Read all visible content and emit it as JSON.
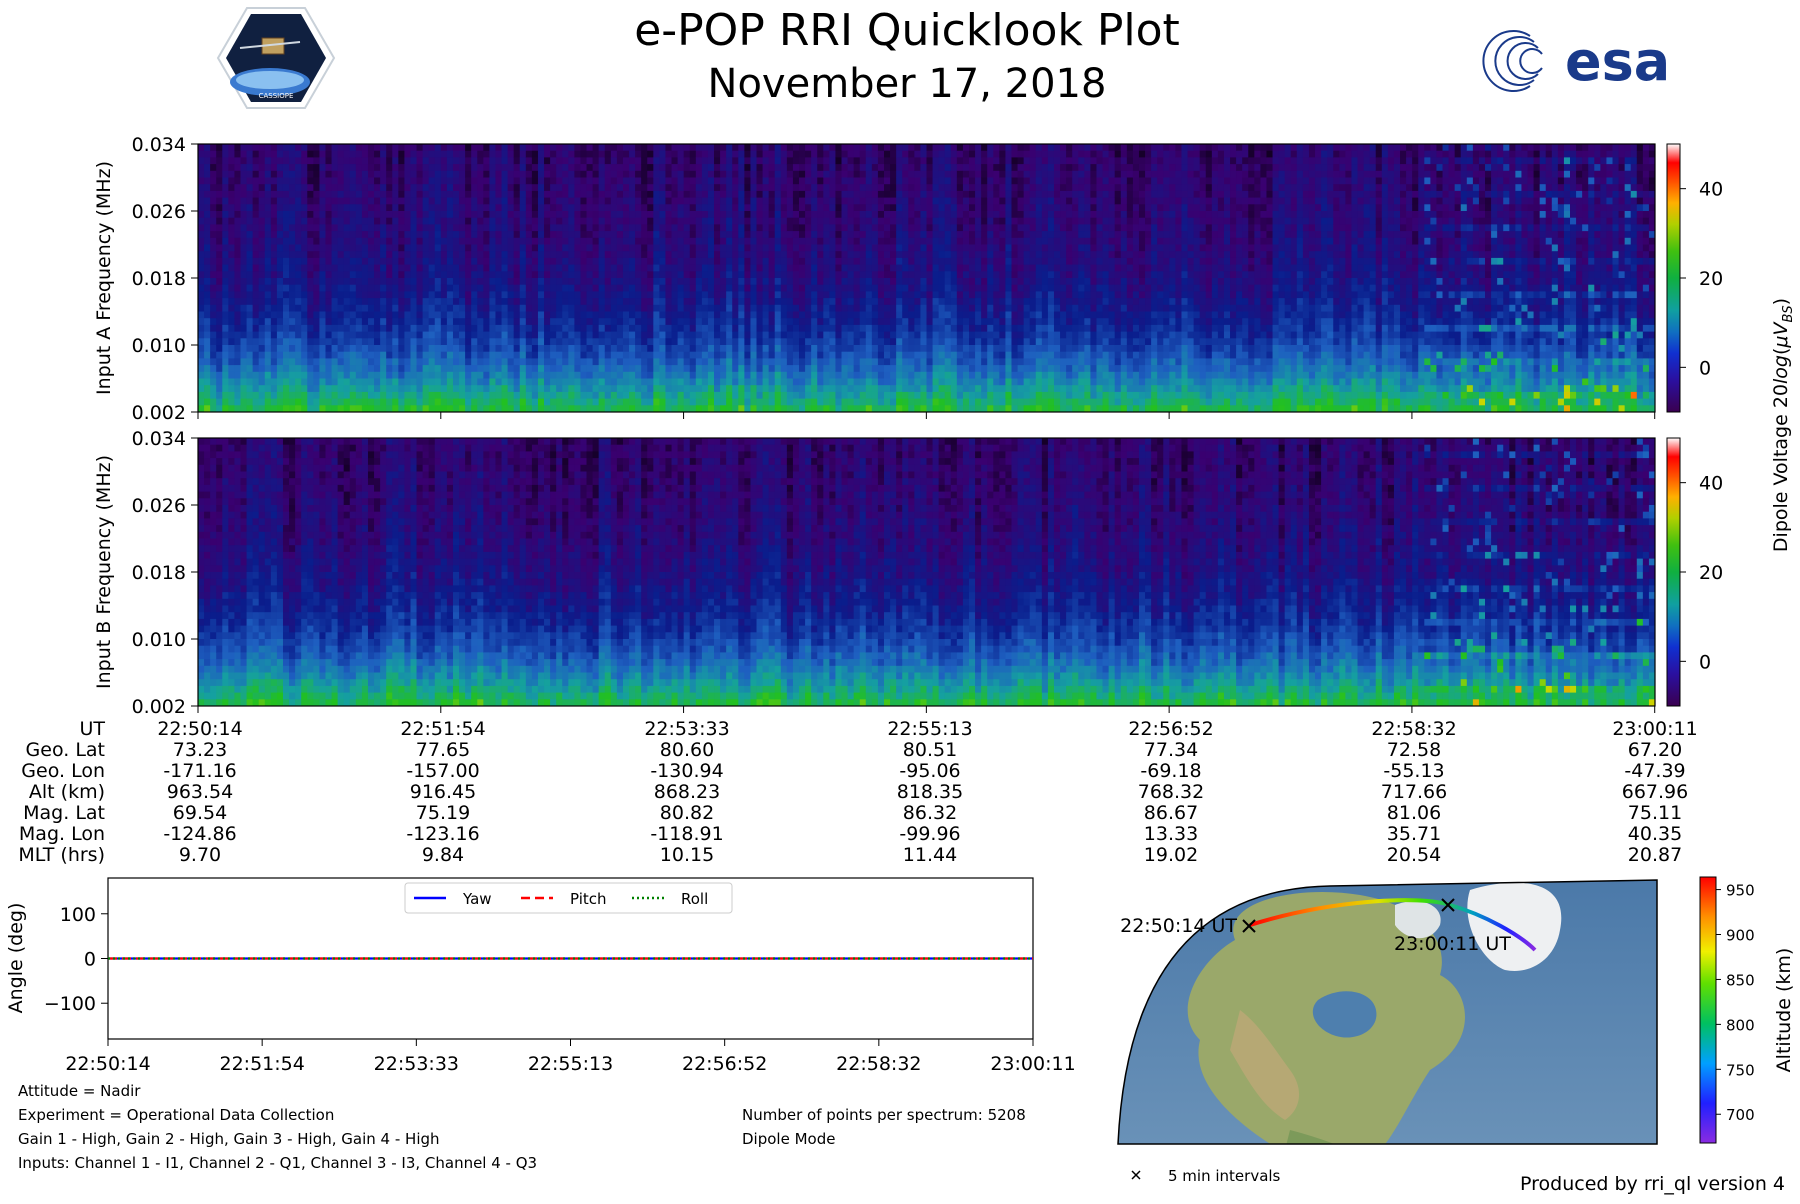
{
  "header": {
    "title": "e-POP RRI Quicklook Plot",
    "date": "November 17, 2018",
    "logo_left": "CASSIOPE",
    "logo_right": "esa"
  },
  "chart_data": [
    {
      "type": "heatmap",
      "ylabel": "Input A Frequency (MHz)",
      "y_ticks": [
        "0.002",
        "0.010",
        "0.018",
        "0.026",
        "0.034"
      ],
      "ylim": [
        0.002,
        0.034
      ],
      "x_ticks": [
        "22:50:14",
        "22:51:54",
        "22:53:33",
        "22:55:13",
        "22:56:52",
        "22:58:32",
        "23:00:11"
      ],
      "colorbar_label": "Dipole Voltage 20log(μV_B S)",
      "colorbar_ticks": [
        "0",
        "20",
        "40"
      ],
      "colorbar_range": [
        -10,
        50
      ],
      "colormap": [
        "#000000",
        "#3a0070",
        "#0a1d8c",
        "#1e5fc0",
        "#15a0a0",
        "#22c020",
        "#c8d800",
        "#ff8000",
        "#ff0000",
        "#ffffff"
      ]
    },
    {
      "type": "heatmap",
      "ylabel": "Input B Frequency (MHz)",
      "y_ticks": [
        "0.002",
        "0.010",
        "0.018",
        "0.026",
        "0.034"
      ],
      "ylim": [
        0.002,
        0.034
      ],
      "colorbar_ticks": [
        "0",
        "20",
        "40"
      ],
      "colorbar_range": [
        -10,
        50
      ]
    },
    {
      "type": "table",
      "rows": [
        {
          "label": "UT",
          "values": [
            "22:50:14",
            "22:51:54",
            "22:53:33",
            "22:55:13",
            "22:56:52",
            "22:58:32",
            "23:00:11"
          ]
        },
        {
          "label": "Geo. Lat",
          "values": [
            "73.23",
            "77.65",
            "80.60",
            "80.51",
            "77.34",
            "72.58",
            "67.20"
          ]
        },
        {
          "label": "Geo. Lon",
          "values": [
            "-171.16",
            "-157.00",
            "-130.94",
            "-95.06",
            "-69.18",
            "-55.13",
            "-47.39"
          ]
        },
        {
          "label": "Alt (km)",
          "values": [
            "963.54",
            "916.45",
            "868.23",
            "818.35",
            "768.32",
            "717.66",
            "667.96"
          ]
        },
        {
          "label": "Mag. Lat",
          "values": [
            "69.54",
            "75.19",
            "80.82",
            "86.32",
            "86.67",
            "81.06",
            "75.11"
          ]
        },
        {
          "label": "Mag. Lon",
          "values": [
            "-124.86",
            "-123.16",
            "-118.91",
            "-99.96",
            "13.33",
            "35.71",
            "40.35"
          ]
        },
        {
          "label": "MLT (hrs)",
          "values": [
            "9.70",
            "9.84",
            "10.15",
            "11.44",
            "19.02",
            "20.54",
            "20.87"
          ]
        }
      ]
    },
    {
      "type": "line",
      "ylabel": "Angle (deg)",
      "ylim": [
        -180,
        180
      ],
      "y_ticks": [
        -100,
        0,
        100
      ],
      "x": [
        "22:50:14",
        "22:51:54",
        "22:53:33",
        "22:55:13",
        "22:56:52",
        "22:58:32",
        "23:00:11"
      ],
      "series": [
        {
          "name": "Yaw",
          "color": "#0000ff",
          "style": "solid",
          "values": [
            0,
            0,
            0,
            0,
            0,
            0,
            0
          ]
        },
        {
          "name": "Pitch",
          "color": "#ff0000",
          "style": "dashed",
          "values": [
            0,
            0,
            0,
            0,
            0,
            0,
            0
          ]
        },
        {
          "name": "Roll",
          "color": "#008000",
          "style": "dotted",
          "values": [
            0,
            0,
            0,
            0,
            0,
            0,
            0
          ]
        }
      ],
      "legend": "top-center"
    },
    {
      "type": "scatter",
      "colorbar_label": "Altitude (km)",
      "colorbar_ticks": [
        700,
        750,
        800,
        850,
        900,
        950
      ],
      "colorbar_range": [
        668,
        964
      ],
      "start_label": "22:50:14 UT",
      "end_label": "23:00:11 UT",
      "marker_legend": "5 min intervals"
    }
  ],
  "footer": {
    "attitude": "Attitude = Nadir",
    "experiment": "Experiment = Operational Data Collection",
    "gain": "Gain 1 - High, Gain 2 - High, Gain 3 - High, Gain 4 - High",
    "inputs": "Inputs: Channel 1 - I1, Channel 2 - Q1, Channel 3 - I3, Channel 4 - Q3",
    "points": "Number of points per spectrum: 5208",
    "mode": "Dipole Mode",
    "produced_by": "Produced by rri_ql version 4"
  }
}
